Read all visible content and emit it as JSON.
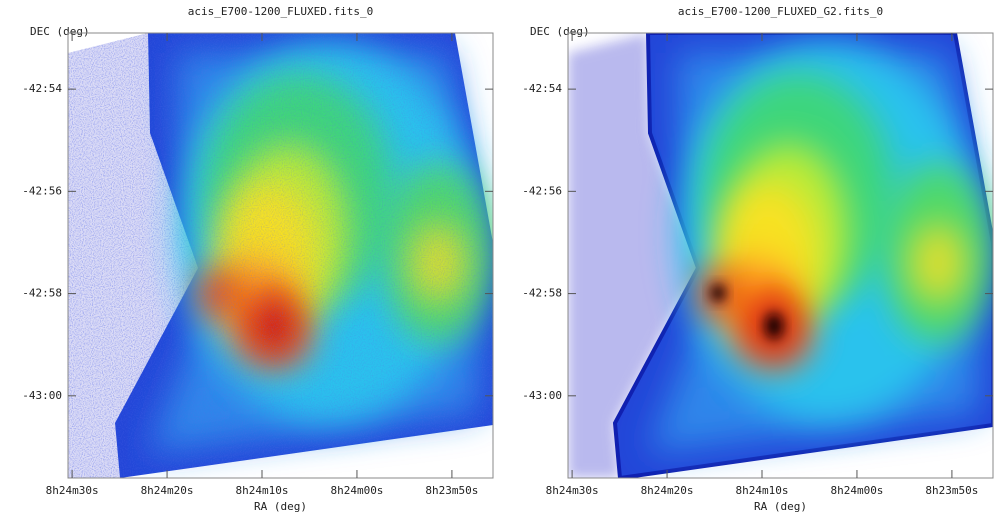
{
  "chart_data": [
    {
      "type": "image",
      "title": "acis_E700-1200_FLUXED.fits_0",
      "xlabel": "RA (deg)",
      "ylabel": "DEC (deg)",
      "xlim": [
        126.1268,
        125.9403
      ],
      "ylim": [
        -43.0268,
        -42.8817
      ],
      "xticks": [
        {
          "value": 126.125,
          "label": "8h24m30s"
        },
        {
          "value": 126.08333,
          "label": "8h24m20s"
        },
        {
          "value": 126.04167,
          "label": "8h24m10s"
        },
        {
          "value": 126.0,
          "label": "8h24m00s"
        },
        {
          "value": 125.95833,
          "label": "8h23m50s"
        }
      ],
      "yticks": [
        {
          "value": -42.9,
          "label": "-42:54"
        },
        {
          "value": -42.93333,
          "label": "-42:56"
        },
        {
          "value": -42.96667,
          "label": "-42:58"
        },
        {
          "value": -43.0,
          "label": "-43:00"
        }
      ]
    },
    {
      "type": "image",
      "title": "acis_E700-1200_FLUXED_G2.fits_0",
      "xlabel": "RA (deg)",
      "ylabel": "DEC (deg)",
      "xlim": [
        126.1268,
        125.9403
      ],
      "ylim": [
        -43.0268,
        -42.8817
      ],
      "xticks": [
        {
          "value": 126.125,
          "label": "8h24m30s"
        },
        {
          "value": 126.08333,
          "label": "8h24m20s"
        },
        {
          "value": 126.04167,
          "label": "8h24m10s"
        },
        {
          "value": 126.0,
          "label": "8h24m00s"
        },
        {
          "value": 125.95833,
          "label": "8h23m50s"
        }
      ],
      "yticks": [
        {
          "value": -42.9,
          "label": "-42:54"
        },
        {
          "value": -42.93333,
          "label": "-42:56"
        },
        {
          "value": -42.96667,
          "label": "-42:58"
        },
        {
          "value": -43.0,
          "label": "-43:00"
        }
      ]
    }
  ]
}
